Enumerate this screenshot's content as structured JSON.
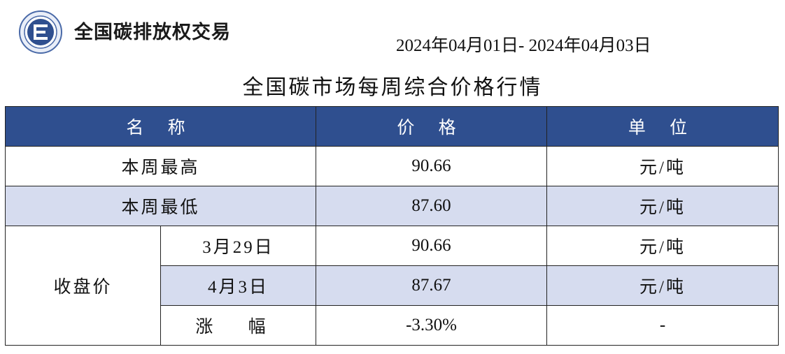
{
  "header": {
    "logo_name": "national-carbon-emission-trading-logo",
    "brand": "全国碳排放权交易",
    "date_range": "2024年04月01日- 2024年04月03日"
  },
  "title": "全国碳市场每周综合价格行情",
  "table": {
    "columns": [
      "名 称",
      "价 格",
      "单 位"
    ],
    "rows": {
      "week_high": {
        "name": "本周最高",
        "price": "90.66",
        "unit": "元/吨"
      },
      "week_low": {
        "name": "本周最低",
        "price": "87.60",
        "unit": "元/吨"
      },
      "closing": {
        "group_label": "收盘价",
        "day1": {
          "name": "3月29日",
          "price": "90.66",
          "unit": "元/吨"
        },
        "day2": {
          "name": "4月3日",
          "price": "87.67",
          "unit": "元/吨"
        },
        "change": {
          "name": "涨 幅",
          "price": "-3.30%",
          "unit": "-"
        }
      }
    }
  },
  "colors": {
    "header_bg": "#2f4f8f",
    "row_shade": "#d6dcef"
  }
}
